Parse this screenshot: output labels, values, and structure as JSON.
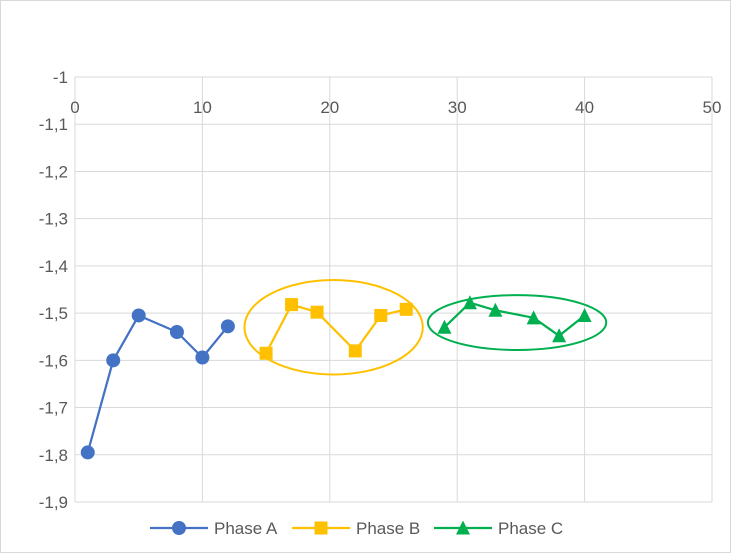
{
  "chart_data": {
    "type": "scatter",
    "title": "",
    "xlabel": "",
    "ylabel": "",
    "xlim": [
      0,
      50
    ],
    "ylim": [
      -1.9,
      -1.0
    ],
    "x_ticks": [
      0,
      10,
      20,
      30,
      40,
      50
    ],
    "x_tick_labels": [
      "0",
      "10",
      "20",
      "30",
      "40",
      "50"
    ],
    "y_ticks": [
      -1.0,
      -1.1,
      -1.2,
      -1.3,
      -1.4,
      -1.5,
      -1.6,
      -1.7,
      -1.8,
      -1.9
    ],
    "y_tick_labels": [
      "-1",
      "-1,1",
      "-1,2",
      "-1,3",
      "-1,4",
      "-1,5",
      "-1,6",
      "-1,7",
      "-1,8",
      "-1,9"
    ],
    "x_axis_position": "top",
    "grid": true,
    "legend_position": "bottom",
    "series": [
      {
        "name": "Phase A",
        "color": "#4472C4",
        "marker": "circle",
        "x": [
          1,
          3,
          5,
          8,
          10,
          12
        ],
        "y": [
          -1.795,
          -1.6,
          -1.505,
          -1.54,
          -1.594,
          -1.528
        ]
      },
      {
        "name": "Phase B",
        "color": "#FFC000",
        "marker": "square",
        "x": [
          15,
          17,
          19,
          22,
          24,
          26
        ],
        "y": [
          -1.585,
          -1.482,
          -1.498,
          -1.58,
          -1.505,
          -1.492
        ]
      },
      {
        "name": "Phase C",
        "color": "#00B050",
        "marker": "triangle",
        "x": [
          29,
          31,
          33,
          36,
          38,
          40
        ],
        "y": [
          -1.53,
          -1.478,
          -1.494,
          -1.51,
          -1.548,
          -1.505
        ]
      }
    ],
    "annotations": [
      {
        "shape": "ellipse",
        "color": "#FFC000",
        "cx": 20.3,
        "cy": -1.53,
        "rx": 7.0,
        "ry": 0.1
      },
      {
        "shape": "ellipse",
        "color": "#00B050",
        "cx": 34.7,
        "cy": -1.52,
        "rx": 7.0,
        "ry": 0.058
      }
    ]
  }
}
